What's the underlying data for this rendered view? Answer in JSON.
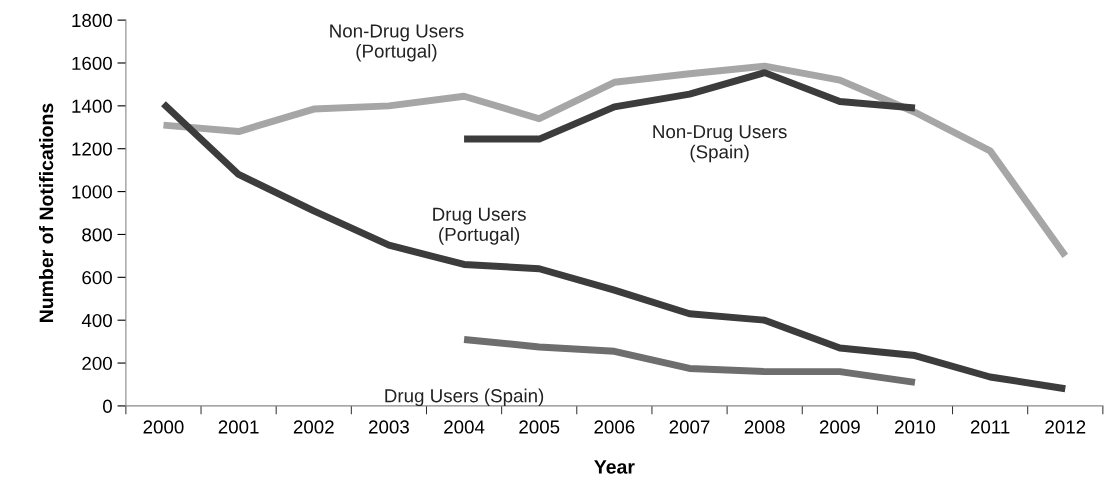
{
  "chart_data": {
    "type": "line",
    "xlabel": "Year",
    "ylabel": "Number of Notifications",
    "categories": [
      "2000",
      "2001",
      "2002",
      "2003",
      "2004",
      "2005",
      "2006",
      "2007",
      "2008",
      "2009",
      "2010",
      "2011",
      "2012"
    ],
    "series": [
      {
        "name": "Non-Drug Users\n(Portugal)",
        "color": "#a6a6a6",
        "values": [
          1310,
          1280,
          1385,
          1400,
          1445,
          1340,
          1510,
          1550,
          1585,
          1520,
          1370,
          1190,
          700
        ]
      },
      {
        "name": "Non-Drug Users\n(Spain)",
        "color": "#3c3c3c",
        "values": [
          null,
          null,
          null,
          null,
          1245,
          1245,
          1395,
          1455,
          1555,
          1420,
          1390,
          null,
          null
        ]
      },
      {
        "name": "Drug Users\n(Portugal)",
        "color": "#3c3c3c",
        "values": [
          1410,
          1080,
          910,
          750,
          660,
          640,
          540,
          430,
          400,
          270,
          235,
          135,
          80
        ]
      },
      {
        "name": "Drug Users (Spain)",
        "color": "#6e6e6e",
        "values": [
          null,
          null,
          null,
          null,
          310,
          275,
          255,
          175,
          160,
          160,
          110,
          null,
          null
        ]
      }
    ],
    "ylim": [
      0,
      1800
    ],
    "yticks": [
      0,
      200,
      400,
      600,
      800,
      1000,
      1200,
      1400,
      1600,
      1800
    ],
    "grid": false,
    "legend": false,
    "marker": "none",
    "line_style": "solid"
  }
}
